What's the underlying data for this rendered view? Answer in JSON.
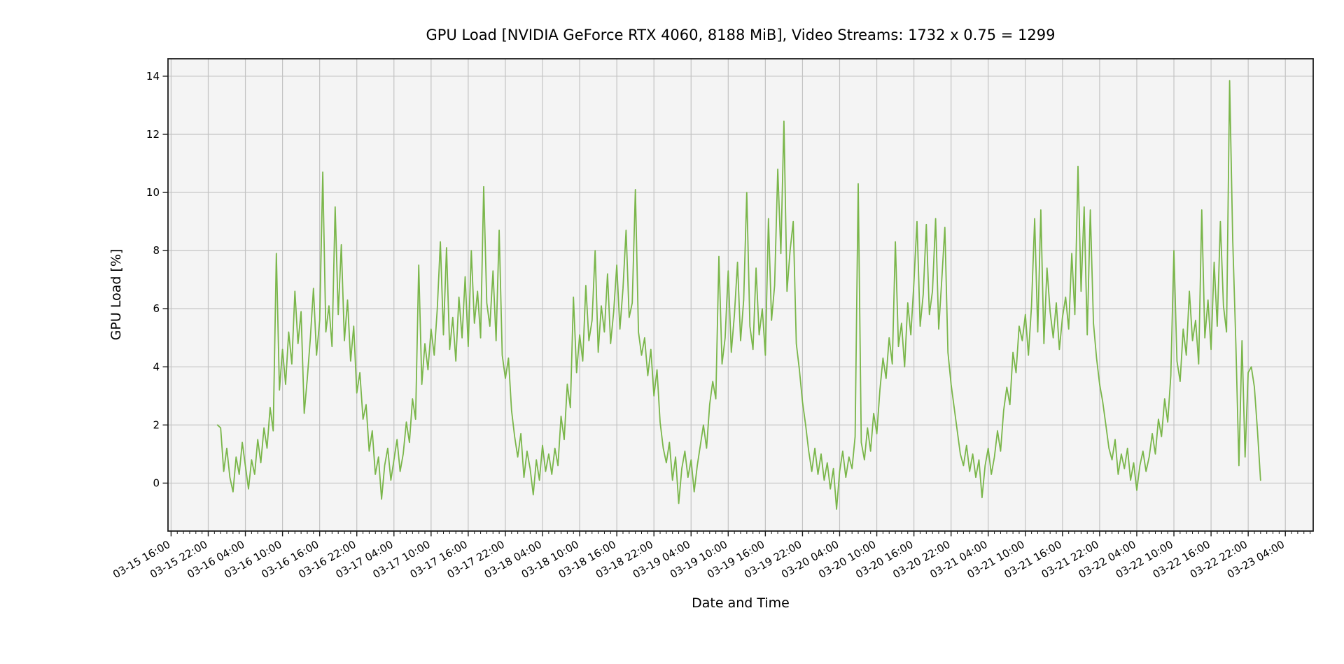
{
  "chart_data": {
    "type": "line",
    "title": "GPU Load [NVIDIA GeForce RTX 4060, 8188 MiB], Video Streams: 1732 x 0.75 = 1299",
    "xlabel": "Date and Time",
    "ylabel": "GPU Load [%]",
    "grid": true,
    "legend": "none",
    "ylim": [
      -1.65,
      14.6
    ],
    "y_ticks": [
      0,
      2,
      4,
      6,
      8,
      10,
      12,
      14
    ],
    "x_axis": {
      "start": "03-15 15:30",
      "end": "03-23 08:30",
      "first_major_tick": "03-15 16:00",
      "major_tick_every_hours": 6,
      "minor_tick_every_hours": 1,
      "tick_label_rotation_deg": 30
    },
    "x_tick_labels": [
      "03-15 16:00",
      "03-15 22:00",
      "03-16 04:00",
      "03-16 10:00",
      "03-16 16:00",
      "03-16 22:00",
      "03-17 04:00",
      "03-17 10:00",
      "03-17 16:00",
      "03-17 22:00",
      "03-18 04:00",
      "03-18 10:00",
      "03-18 16:00",
      "03-18 22:00",
      "03-19 04:00",
      "03-19 10:00",
      "03-19 16:00",
      "03-19 22:00",
      "03-20 04:00",
      "03-20 10:00",
      "03-20 16:00",
      "03-20 22:00",
      "03-21 04:00",
      "03-21 10:00",
      "03-21 16:00",
      "03-21 22:00",
      "03-22 04:00",
      "03-22 10:00",
      "03-22 16:00",
      "03-22 22:00",
      "03-23 04:00"
    ],
    "colors": {
      "line": "#7ab64a",
      "plot_background": "#f4f4f4",
      "figure_background": "#ffffff",
      "grid": "#c3c3c3",
      "spine": "#1c1c1c",
      "text": "#000000"
    },
    "series": [
      {
        "name": "GPU Load",
        "start": "03-15 23:30",
        "interval_minutes": 30,
        "values": [
          2.0,
          1.9,
          0.4,
          1.2,
          0.2,
          -0.3,
          0.9,
          0.3,
          1.4,
          0.6,
          -0.2,
          0.8,
          0.3,
          1.5,
          0.7,
          1.9,
          1.2,
          2.6,
          1.8,
          7.9,
          3.2,
          4.6,
          3.4,
          5.2,
          4.1,
          6.6,
          4.8,
          5.9,
          2.4,
          3.6,
          5.0,
          6.7,
          4.4,
          5.6,
          10.7,
          5.2,
          6.1,
          4.7,
          9.5,
          5.8,
          8.2,
          4.9,
          6.3,
          4.2,
          5.4,
          3.1,
          3.8,
          2.2,
          2.7,
          1.1,
          1.8,
          0.3,
          0.9,
          -0.55,
          0.6,
          1.2,
          0.1,
          0.8,
          1.5,
          0.4,
          1.0,
          2.1,
          1.4,
          2.9,
          2.2,
          7.5,
          3.4,
          4.8,
          3.9,
          5.3,
          4.4,
          6.0,
          8.3,
          5.1,
          8.1,
          4.6,
          5.7,
          4.2,
          6.4,
          5.0,
          7.1,
          4.7,
          8.0,
          5.5,
          6.6,
          5.0,
          10.2,
          6.2,
          5.4,
          7.3,
          4.9,
          8.7,
          4.4,
          3.6,
          4.3,
          2.5,
          1.6,
          0.9,
          1.7,
          0.2,
          1.1,
          0.5,
          -0.4,
          0.8,
          0.1,
          1.3,
          0.4,
          1.0,
          0.3,
          1.2,
          0.6,
          2.3,
          1.5,
          3.4,
          2.6,
          6.4,
          3.8,
          5.1,
          4.2,
          6.8,
          4.9,
          5.6,
          8.0,
          4.5,
          6.1,
          5.2,
          7.2,
          4.8,
          5.9,
          7.5,
          5.3,
          6.7,
          8.7,
          5.7,
          6.2,
          10.1,
          5.2,
          4.4,
          5.0,
          3.7,
          4.6,
          3.0,
          3.9,
          2.1,
          1.2,
          0.7,
          1.4,
          0.1,
          0.9,
          -0.7,
          0.5,
          1.1,
          0.2,
          0.8,
          -0.3,
          0.6,
          1.3,
          2.0,
          1.2,
          2.7,
          3.5,
          2.9,
          7.8,
          4.1,
          5.0,
          7.3,
          4.5,
          5.8,
          7.6,
          4.9,
          6.3,
          10.0,
          5.4,
          4.6,
          7.4,
          5.1,
          6.0,
          4.4,
          9.1,
          5.6,
          6.8,
          10.8,
          7.9,
          12.45,
          6.6,
          8.0,
          9.0,
          4.8,
          3.9,
          2.8,
          2.0,
          1.1,
          0.4,
          1.2,
          0.3,
          1.0,
          0.1,
          0.7,
          -0.2,
          0.5,
          -0.9,
          0.4,
          1.1,
          0.2,
          0.9,
          0.5,
          1.6,
          10.3,
          1.4,
          0.8,
          1.9,
          1.1,
          2.4,
          1.7,
          3.2,
          4.3,
          3.6,
          5.0,
          4.1,
          8.3,
          4.7,
          5.5,
          4.0,
          6.2,
          5.1,
          6.9,
          9.0,
          5.4,
          6.5,
          8.9,
          5.8,
          6.6,
          9.1,
          5.3,
          7.0,
          8.8,
          4.5,
          3.4,
          2.6,
          1.8,
          1.0,
          0.6,
          1.3,
          0.4,
          1.0,
          0.2,
          0.8,
          -0.5,
          0.6,
          1.2,
          0.3,
          0.9,
          1.8,
          1.1,
          2.5,
          3.3,
          2.7,
          4.5,
          3.8,
          5.4,
          4.9,
          5.8,
          4.4,
          6.1,
          9.1,
          5.2,
          9.4,
          4.8,
          7.4,
          5.9,
          5.0,
          6.2,
          4.6,
          5.7,
          6.4,
          5.3,
          7.9,
          5.8,
          10.9,
          6.6,
          9.5,
          5.1,
          9.4,
          5.5,
          4.3,
          3.4,
          2.8,
          2.0,
          1.2,
          0.8,
          1.5,
          0.3,
          1.0,
          0.5,
          1.2,
          0.1,
          0.7,
          -0.25,
          0.6,
          1.1,
          0.4,
          0.9,
          1.7,
          1.0,
          2.2,
          1.6,
          2.9,
          2.1,
          3.7,
          8.0,
          4.2,
          3.5,
          5.3,
          4.4,
          6.6,
          4.9,
          5.6,
          4.1,
          9.4,
          5.0,
          6.3,
          4.6,
          7.6,
          5.4,
          9.0,
          6.1,
          5.2,
          13.85,
          8.4,
          4.8,
          0.6,
          4.9,
          0.9,
          3.8,
          4.0,
          3.3,
          1.8,
          0.1
        ]
      }
    ]
  }
}
